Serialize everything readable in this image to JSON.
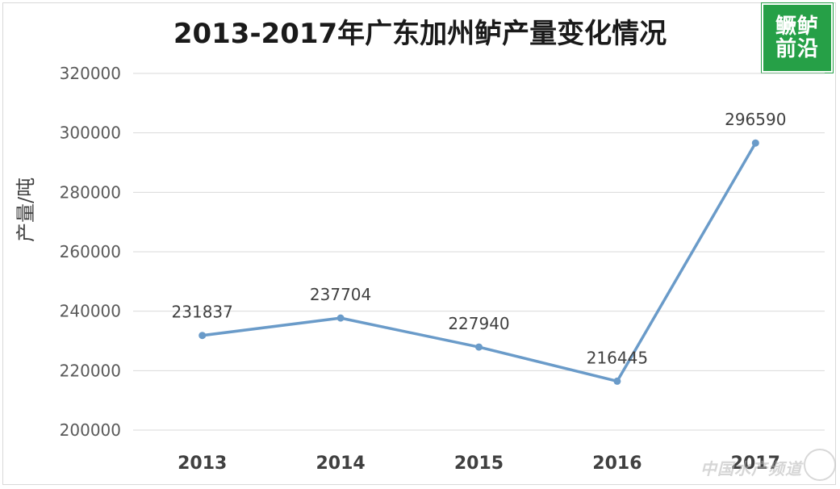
{
  "chart_data": {
    "type": "line",
    "title": "2013-2017年广东加州鲈产量变化情况",
    "ylabel": "产量/吨",
    "xlabel": "",
    "categories": [
      "2013",
      "2014",
      "2015",
      "2016",
      "2017"
    ],
    "series": [
      {
        "values": [
          231837,
          237704,
          227940,
          216445,
          296590
        ]
      }
    ],
    "data_labels": [
      "231837",
      "237704",
      "227940",
      "216445",
      "296590"
    ],
    "ylim": [
      200000,
      320000
    ],
    "yticks": [
      "200000",
      "220000",
      "240000",
      "260000",
      "280000",
      "300000",
      "320000"
    ],
    "grid": true,
    "legend": "none",
    "line_color": "#6a9bc9"
  },
  "logo": {
    "line1": "鳜鲈",
    "line2": "前沿"
  },
  "watermark": {
    "text": "中国水产频道"
  }
}
